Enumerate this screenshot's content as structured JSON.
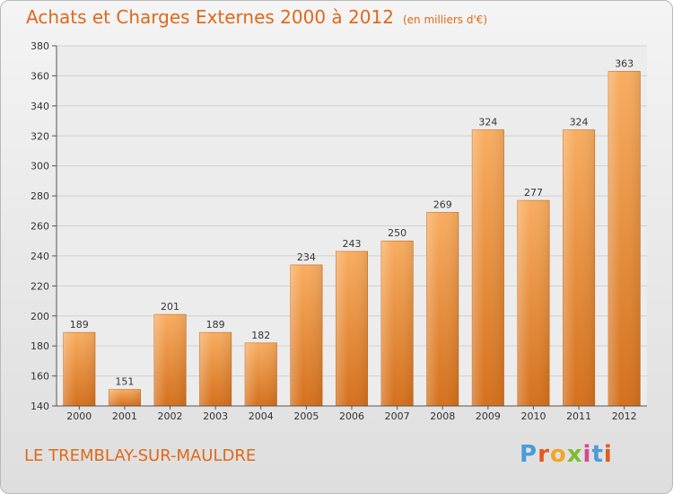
{
  "title": "Achats et Charges Externes 2000 à 2012",
  "unit_note": "(en milliers d'€)",
  "town": "LE TREMBLAY-SUR-MAULDRE",
  "logo": [
    "P",
    "r",
    "o",
    "x",
    "i",
    "t",
    "i"
  ],
  "colors": {
    "accent": "#e0691a",
    "bar_light": "#f6a85a",
    "bar_dark": "#d8741e"
  },
  "chart_data": {
    "type": "bar",
    "title": "Achats et Charges Externes 2000 à 2012",
    "categories": [
      "2000",
      "2001",
      "2002",
      "2003",
      "2004",
      "2005",
      "2006",
      "2007",
      "2008",
      "2009",
      "2010",
      "2011",
      "2012"
    ],
    "values": [
      189,
      151,
      201,
      189,
      182,
      234,
      243,
      250,
      269,
      324,
      277,
      324,
      363
    ],
    "ylim": [
      140,
      380
    ],
    "yticks": [
      140,
      160,
      180,
      200,
      220,
      240,
      260,
      280,
      300,
      320,
      340,
      360,
      380
    ],
    "grid": true,
    "xlabel": "",
    "ylabel": ""
  }
}
